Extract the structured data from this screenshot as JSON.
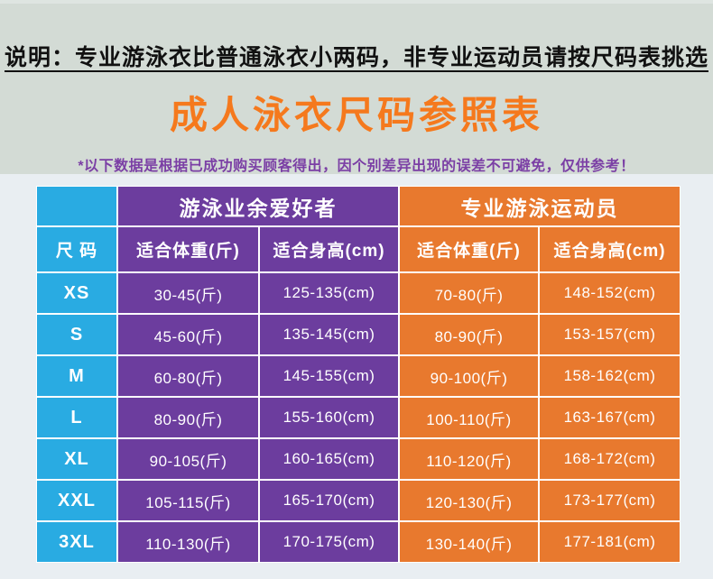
{
  "theme": {
    "bg-top": "#d3dbd5",
    "bg-top-strip": "#dee5e1",
    "bg-bottom": "#e9eef2",
    "size-col": "#29abe2",
    "amateur": "#6c3d9e",
    "professional": "#e8792e",
    "title": "#f5791d",
    "disclaimer": "#7b3fa5",
    "notice": "#111111",
    "divider": "#ffffff"
  },
  "header": {
    "notice": "说明：专业游泳衣比普通泳衣小两码，非专业运动员请按尺码表挑选",
    "title": "成人泳衣尺码参照表",
    "disclaimer": "*以下数据是根据已成功购买顾客得出，因个别差异出现的误差不可避免，仅供参考！"
  },
  "table": {
    "size_header": "尺 码",
    "groups": [
      {
        "label": "游泳业余爱好者",
        "columns": [
          "适合体重(斤)",
          "适合身高(cm)"
        ]
      },
      {
        "label": "专业游泳运动员",
        "columns": [
          "适合体重(斤)",
          "适合身高(cm)"
        ]
      }
    ],
    "rows": [
      [
        "XS",
        "30-45(斤)",
        "125-135(cm)",
        "70-80(斤)",
        "148-152(cm)"
      ],
      [
        "S",
        "45-60(斤)",
        "135-145(cm)",
        "80-90(斤)",
        "153-157(cm)"
      ],
      [
        "M",
        "60-80(斤)",
        "145-155(cm)",
        "90-100(斤)",
        "158-162(cm)"
      ],
      [
        "L",
        "80-90(斤)",
        "155-160(cm)",
        "100-110(斤)",
        "163-167(cm)"
      ],
      [
        "XL",
        "90-105(斤)",
        "160-165(cm)",
        "110-120(斤)",
        "168-172(cm)"
      ],
      [
        "XXL",
        "105-115(斤)",
        "165-170(cm)",
        "120-130(斤)",
        "173-177(cm)"
      ],
      [
        "3XL",
        "110-130(斤)",
        "170-175(cm)",
        "130-140(斤)",
        "177-181(cm)"
      ]
    ]
  }
}
